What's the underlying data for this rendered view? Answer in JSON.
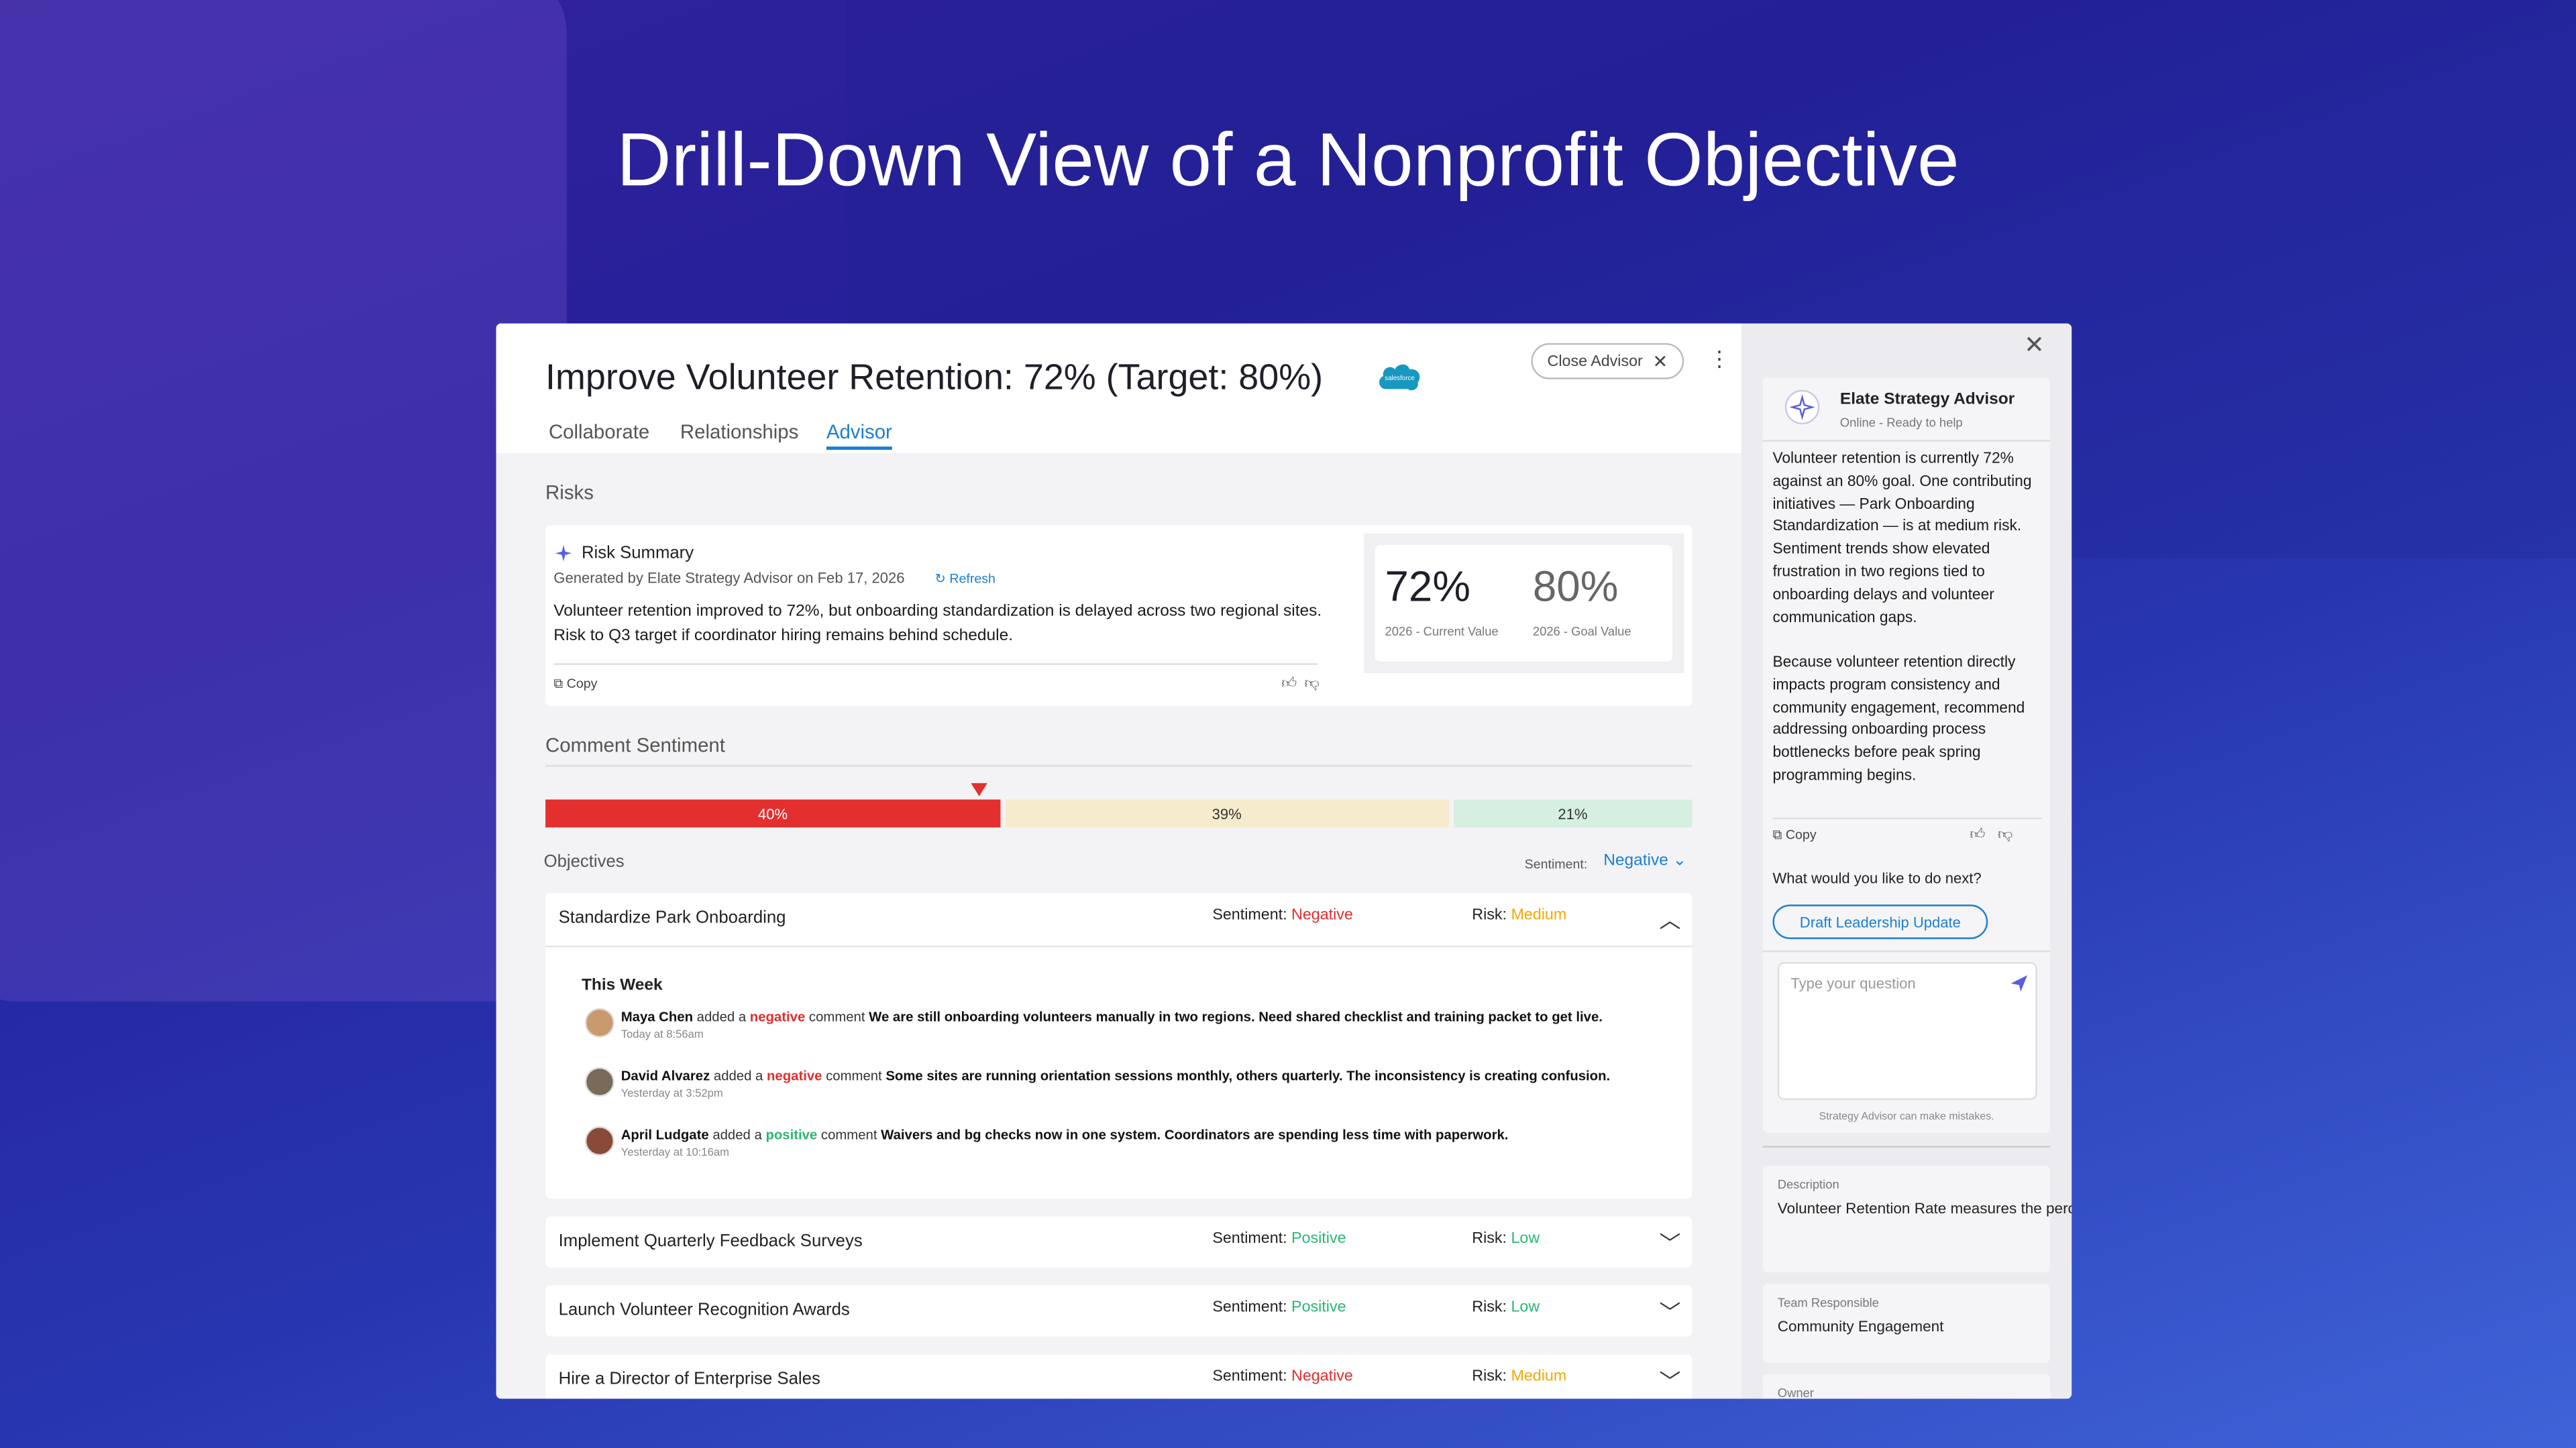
{
  "header": {
    "title": "Drill-Down View of a Nonprofit Objective"
  },
  "objective": {
    "title": "Improve Volunteer Retention: 72% (Target: 80%)",
    "logo": "salesforce",
    "close_button": "Close Advisor",
    "tabs": [
      "Collaborate",
      "Relationships",
      "Advisor"
    ]
  },
  "risks": {
    "section_label": "Risks",
    "card_title": "Risk Summary",
    "generated": "Generated by Elate Strategy Advisor on Feb 17, 2026",
    "refresh": "Refresh",
    "summary": "Volunteer retention improved to 72%, but onboarding standardization is delayed across two regional sites. Risk to Q3 target if coordinator hiring remains behind schedule.",
    "copy": "Copy",
    "metrics": [
      {
        "value": "72%",
        "caption": "2026 - Current Value"
      },
      {
        "value": "80%",
        "caption": "2026 - Goal Value"
      }
    ]
  },
  "sentiment": {
    "label": "Comment Sentiment",
    "segments": [
      {
        "value": 40,
        "label": "40%",
        "color": "#e42f2f"
      },
      {
        "value": 39,
        "label": "39%",
        "color": "#f6ebcc"
      },
      {
        "value": 21,
        "label": "21%",
        "color": "#d5efe1"
      }
    ]
  },
  "objectives": {
    "label": "Objectives",
    "filter_label": "Sentiment:",
    "filter_value": "Negative",
    "row_sentiment_label": "Sentiment:",
    "row_risk_label": "Risk:",
    "week_label": "This Week",
    "comment_verb": "added a",
    "comment_noun": "comment",
    "items": [
      {
        "name": "Standardize Park Onboarding",
        "sentiment": {
          "text": "Negative",
          "color": "#e02d2d"
        },
        "risk": {
          "text": "Medium",
          "color": "#f2a900"
        },
        "comments": [
          {
            "author": "Maya Chen",
            "tone": {
              "text": "negative",
              "color": "#e02d2d"
            },
            "text": "We are still onboarding volunteers manually in two regions. Need shared checklist and training packet to get live.",
            "time": "Today at 8:56am"
          },
          {
            "author": "David Alvarez",
            "tone": {
              "text": "negative",
              "color": "#e02d2d"
            },
            "text": "Some sites are running orientation sessions monthly, others quarterly. The inconsistency is creating confusion.",
            "time": "Yesterday at 3:52pm"
          },
          {
            "author": "April Ludgate",
            "tone": {
              "text": "positive",
              "color": "#2bb673"
            },
            "text": " Waivers and bg checks now in one system. Coordinators are spending less time with paperwork.",
            "time": "Yesterday at 10:16am"
          }
        ]
      },
      {
        "name": "Implement Quarterly Feedback Surveys",
        "sentiment": {
          "text": "Positive",
          "color": "#2bb673"
        },
        "risk": {
          "text": "Low",
          "color": "#2bb673"
        }
      },
      {
        "name": "Launch Volunteer Recognition Awards",
        "sentiment": {
          "text": "Positive",
          "color": "#2bb673"
        },
        "risk": {
          "text": "Low",
          "color": "#2bb673"
        }
      },
      {
        "name": "Hire a Director of Enterprise Sales",
        "sentiment": {
          "text": "Negative",
          "color": "#e02d2d"
        },
        "risk": {
          "text": "Medium",
          "color": "#f2a900"
        }
      }
    ]
  },
  "advisor": {
    "name": "Elate Strategy Advisor",
    "status": "Online - Ready to help",
    "paragraphs": [
      "Volunteer retention is currently 72% against an 80% goal. One contributing initiatives — Park Onboarding Standardization — is at medium risk. Sentiment trends show elevated frustration in two regions tied to onboarding delays and volunteer communication gaps.",
      "Because volunteer retention directly impacts program consistency and community engagement, recommend addressing onboarding process bottlenecks before peak spring programming begins."
    ],
    "copy": "Copy",
    "prompt": "What would you like to do next?",
    "action": "Draft Leadership Update",
    "input_placeholder": "Type your question",
    "disclaimer": "Strategy Advisor can make mistakes.",
    "details": [
      {
        "label": "Description",
        "text": "Volunteer Retention Rate measures the percentage of active volunteers who continue serving year over year."
      },
      {
        "label": "Team Responsible",
        "text": "Community Engagement"
      },
      {
        "label": "Owner"
      }
    ]
  }
}
